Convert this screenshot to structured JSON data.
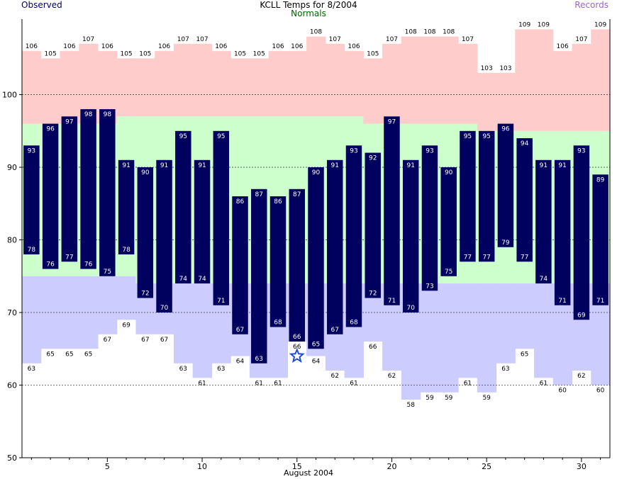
{
  "chart_data": {
    "type": "bar",
    "title": "KCLL Temps for 8/2004",
    "xlabel": "August 2004",
    "legend": {
      "observed": "Observed",
      "normals": "Normals",
      "records": "Records"
    },
    "colors": {
      "observed": "#00005e",
      "record_band": "#ffcccc",
      "normal_band": "#ccffcc",
      "record_low_band": "#ccccff",
      "observed_text": "#00005e",
      "normals_text": "#006400",
      "records_text": "#9966cc",
      "star": "#1f4fd1"
    },
    "x_ticks": [
      5,
      10,
      15,
      20,
      25,
      30
    ],
    "y_ticks": [
      50,
      60,
      70,
      80,
      90,
      100
    ],
    "ylim": [
      50,
      110.4
    ],
    "xlim": [
      0.5,
      31.5
    ],
    "grid": "dashed horizontal at 60, 70, 80, 90, 100",
    "days": [
      1,
      2,
      3,
      4,
      5,
      6,
      7,
      8,
      9,
      10,
      11,
      12,
      13,
      14,
      15,
      16,
      17,
      18,
      19,
      20,
      21,
      22,
      23,
      24,
      25,
      26,
      27,
      28,
      29,
      30,
      31
    ],
    "observed_high": [
      93,
      96,
      97,
      98,
      98,
      91,
      90,
      91,
      95,
      91,
      95,
      86,
      87,
      86,
      87,
      90,
      91,
      93,
      92,
      97,
      91,
      93,
      90,
      95,
      95,
      96,
      94,
      91,
      91,
      93,
      89
    ],
    "observed_low": [
      78,
      76,
      77,
      76,
      75,
      78,
      72,
      70,
      74,
      74,
      71,
      67,
      63,
      68,
      66,
      65,
      67,
      68,
      72,
      71,
      70,
      73,
      75,
      77,
      77,
      79,
      77,
      74,
      71,
      69,
      71
    ],
    "normal_high": [
      96,
      96,
      96,
      96,
      96,
      97,
      97,
      97,
      97,
      97,
      97,
      97,
      97,
      97,
      97,
      97,
      97,
      97,
      96,
      96,
      96,
      96,
      96,
      96,
      95,
      95,
      95,
      95,
      95,
      95,
      95
    ],
    "normal_low": [
      75,
      75,
      75,
      75,
      75,
      75,
      74,
      74,
      74,
      74,
      74,
      74,
      74,
      74,
      74,
      74,
      74,
      74,
      74,
      74,
      74,
      74,
      74,
      74,
      74,
      74,
      74,
      74,
      74,
      74,
      74
    ],
    "record_high": [
      106,
      105,
      106,
      107,
      106,
      105,
      105,
      106,
      107,
      107,
      106,
      105,
      105,
      106,
      106,
      108,
      107,
      106,
      105,
      107,
      108,
      108,
      108,
      107,
      103,
      103,
      109,
      109,
      106,
      107,
      109
    ],
    "record_low": [
      63,
      65,
      65,
      65,
      67,
      69,
      67,
      67,
      63,
      61,
      63,
      64,
      61,
      61,
      66,
      64,
      62,
      61,
      66,
      62,
      58,
      59,
      59,
      61,
      59,
      63,
      65,
      61,
      60,
      62,
      60
    ],
    "marker": {
      "day": 15,
      "value": 64,
      "symbol": "star"
    }
  }
}
